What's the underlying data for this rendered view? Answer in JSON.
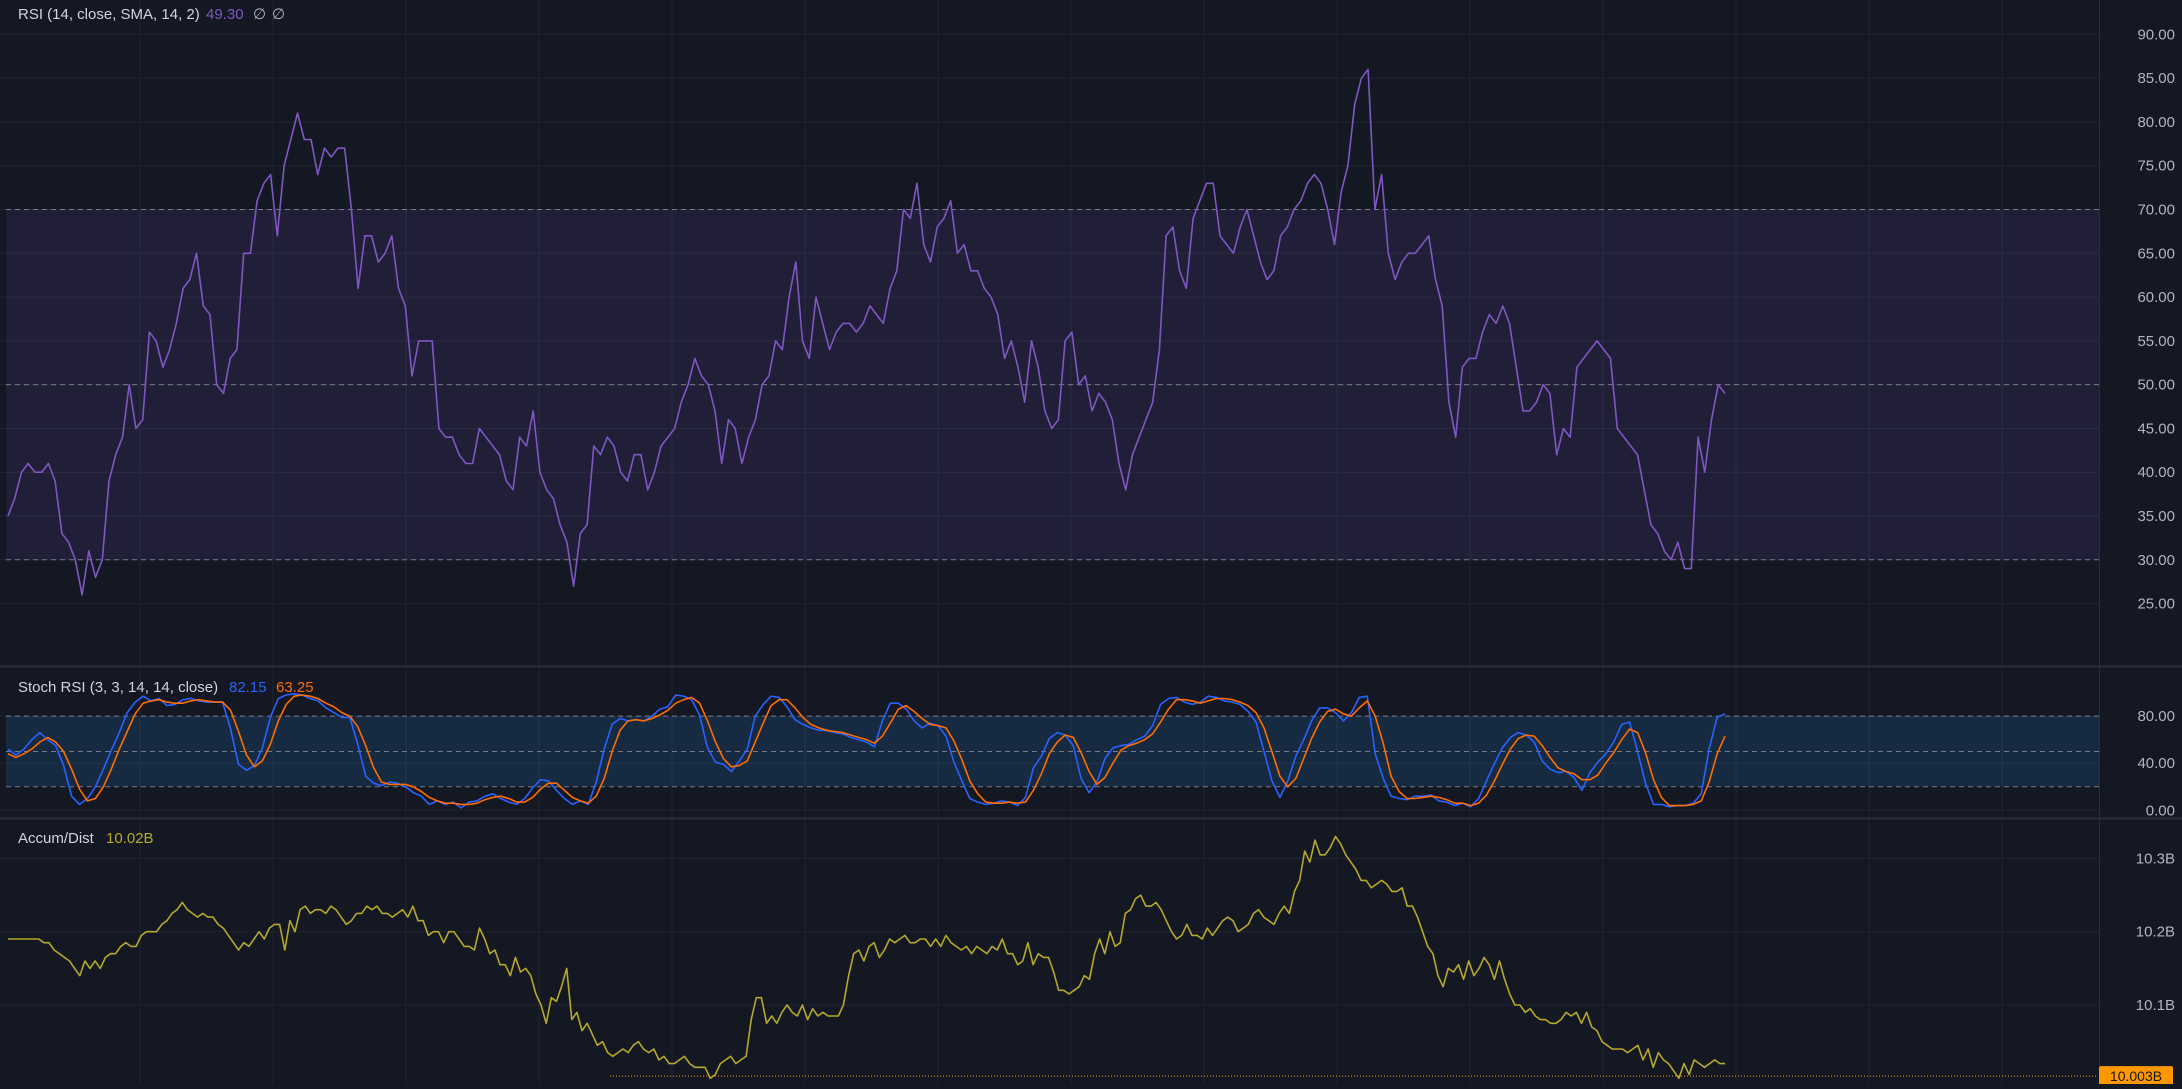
{
  "theme": {
    "background": "#141823",
    "grid": "#212532",
    "separator": "#2a2e39",
    "axis_text": "#b2b5be",
    "label_text": "#d1d4dc",
    "rsi_line": "#7e57c2",
    "rsi_band": "#7e57c2",
    "stoch_k": "#2962ff",
    "stoch_d": "#ff6d00",
    "stoch_band": "#2196f3",
    "ad_line": "#b5a82a",
    "ad_badge": "#ff9800"
  },
  "chart_data": [
    {
      "type": "line",
      "panel": "rsi",
      "label": {
        "name": "RSI (14, close, SMA, 14, 2)",
        "value": "49.30",
        "extra1": "∅",
        "extra2": "∅"
      },
      "yticks": [
        "90.00",
        "85.00",
        "80.00",
        "75.00",
        "70.00",
        "65.00",
        "60.00",
        "55.00",
        "50.00",
        "45.00",
        "40.00",
        "35.00",
        "30.00",
        "25.00"
      ],
      "ylim": [
        20.5,
        91.3
      ],
      "band": [
        30,
        70
      ],
      "levels": [
        70,
        50,
        30
      ],
      "grid": true,
      "series": [
        {
          "values": [
            35,
            37,
            40,
            41,
            40,
            40,
            41,
            39,
            33,
            32,
            30,
            26,
            31,
            28,
            30,
            39,
            42,
            44,
            50,
            45,
            46,
            56,
            55,
            52,
            54,
            57,
            61,
            62,
            65,
            59,
            58,
            50,
            49,
            53,
            54,
            65,
            65,
            71,
            73,
            74,
            67,
            75,
            78,
            81,
            78,
            78,
            74,
            77,
            76,
            77,
            77,
            70,
            61,
            67,
            67,
            64,
            65,
            67,
            61,
            59,
            51,
            55,
            55,
            55,
            45,
            44,
            44,
            42,
            41,
            41,
            45,
            44,
            43,
            42,
            39,
            38,
            44,
            43,
            47,
            40,
            38,
            37,
            34,
            32,
            27,
            33,
            34,
            43,
            42,
            44,
            43,
            40,
            39,
            42,
            42,
            38,
            40,
            43,
            44,
            45,
            48,
            50,
            53,
            51,
            50,
            47,
            41,
            46,
            45,
            41,
            44,
            46,
            50,
            51,
            55,
            54,
            60,
            64,
            55,
            53,
            60,
            57,
            54,
            56,
            57,
            57,
            56,
            57,
            59,
            58,
            57,
            61,
            63,
            70,
            69,
            73,
            66,
            64,
            68,
            69,
            71,
            65,
            66,
            63,
            63,
            61,
            60,
            58,
            53,
            55,
            52,
            48,
            55,
            52,
            47,
            45,
            46,
            55,
            56,
            50,
            51,
            47,
            49,
            48,
            46,
            41,
            38,
            42,
            44,
            46,
            48,
            54,
            67,
            68,
            63,
            61,
            69,
            71,
            73,
            73,
            67,
            66,
            65,
            68,
            70,
            67,
            64,
            62,
            63,
            67,
            68,
            70,
            71,
            73,
            74,
            73,
            70,
            66,
            72,
            75,
            82,
            85,
            86,
            70,
            74,
            65,
            62,
            64,
            65,
            65,
            66,
            67,
            62,
            59,
            48,
            44,
            52,
            53,
            53,
            56,
            58,
            57,
            59,
            57,
            52,
            47,
            47,
            48,
            50,
            49,
            42,
            45,
            44,
            52,
            53,
            54,
            55,
            54,
            53,
            45,
            44,
            43,
            42,
            38,
            34,
            33,
            31,
            30,
            32,
            29,
            29,
            44,
            40,
            46,
            50,
            49
          ]
        }
      ]
    },
    {
      "type": "line",
      "panel": "stoch",
      "label": {
        "name": "Stoch RSI (3, 3, 14, 14, close)",
        "k_value": "82.15",
        "d_value": "63.25"
      },
      "yticks": [
        "80.00",
        "40.00",
        "0.00"
      ],
      "ylim": [
        -4,
        115
      ],
      "band": [
        20,
        80
      ],
      "levels": [
        80,
        50,
        20
      ],
      "grid": true,
      "series": [
        {
          "name": "K",
          "values": [
            52,
            47,
            52,
            60,
            66,
            60,
            55,
            38,
            12,
            5,
            10,
            20,
            35,
            51,
            66,
            83,
            92,
            97,
            93,
            95,
            89,
            90,
            94,
            95,
            93,
            92,
            92,
            92,
            69,
            39,
            34,
            38,
            53,
            79,
            95,
            98,
            99,
            98,
            95,
            93,
            87,
            83,
            79,
            79,
            56,
            29,
            23,
            21,
            24,
            23,
            20,
            15,
            12,
            5,
            8,
            5,
            7,
            2,
            7,
            8,
            12,
            14,
            10,
            7,
            5,
            10,
            19,
            26,
            25,
            17,
            10,
            5,
            8,
            5,
            24,
            52,
            73,
            78,
            76,
            77,
            76,
            80,
            86,
            88,
            98,
            97,
            94,
            81,
            53,
            41,
            39,
            33,
            42,
            52,
            80,
            90,
            97,
            96,
            88,
            77,
            73,
            70,
            68,
            68,
            66,
            65,
            62,
            60,
            58,
            54,
            76,
            91,
            91,
            86,
            76,
            70,
            74,
            72,
            63,
            41,
            25,
            10,
            7,
            5,
            6,
            8,
            7,
            4,
            11,
            36,
            46,
            61,
            66,
            64,
            55,
            27,
            15,
            24,
            44,
            53,
            55,
            56,
            60,
            63,
            72,
            90,
            95,
            96,
            92,
            90,
            92,
            97,
            96,
            93,
            92,
            90,
            84,
            75,
            50,
            25,
            11,
            25,
            46,
            60,
            76,
            87,
            87,
            83,
            76,
            83,
            96,
            97,
            48,
            27,
            12,
            10,
            9,
            12,
            12,
            13,
            8,
            7,
            4,
            6,
            3,
            10,
            25,
            40,
            53,
            62,
            66,
            64,
            58,
            42,
            35,
            32,
            33,
            28,
            17,
            32,
            41,
            48,
            58,
            73,
            75,
            50,
            23,
            5,
            5,
            3,
            4,
            4,
            6,
            14,
            52,
            79,
            82
          ]
        },
        {
          "name": "D",
          "values": [
            48,
            45,
            48,
            52,
            58,
            62,
            58,
            50,
            35,
            18,
            8,
            10,
            20,
            35,
            52,
            67,
            82,
            91,
            93,
            94,
            92,
            91,
            91,
            93,
            94,
            93,
            92,
            92,
            85,
            67,
            47,
            37,
            42,
            56,
            76,
            90,
            97,
            98,
            97,
            95,
            91,
            88,
            83,
            80,
            71,
            55,
            36,
            24,
            22,
            22,
            22,
            20,
            16,
            11,
            8,
            6,
            6,
            5,
            5,
            6,
            9,
            11,
            12,
            10,
            7,
            7,
            11,
            18,
            23,
            23,
            17,
            11,
            8,
            6,
            12,
            27,
            50,
            68,
            76,
            77,
            76,
            78,
            81,
            85,
            91,
            94,
            96,
            91,
            76,
            58,
            44,
            37,
            38,
            42,
            58,
            74,
            89,
            94,
            94,
            87,
            79,
            73,
            70,
            68,
            67,
            66,
            64,
            62,
            60,
            57,
            63,
            74,
            86,
            89,
            84,
            78,
            73,
            72,
            70,
            59,
            43,
            25,
            14,
            7,
            6,
            6,
            7,
            6,
            7,
            17,
            31,
            48,
            58,
            64,
            62,
            49,
            33,
            22,
            28,
            40,
            51,
            55,
            57,
            60,
            65,
            75,
            86,
            94,
            94,
            93,
            91,
            93,
            95,
            95,
            94,
            92,
            89,
            83,
            70,
            50,
            29,
            20,
            27,
            44,
            61,
            75,
            84,
            86,
            82,
            80,
            87,
            93,
            80,
            57,
            29,
            16,
            10,
            10,
            11,
            12,
            11,
            9,
            6,
            6,
            4,
            6,
            13,
            25,
            39,
            52,
            61,
            64,
            63,
            55,
            45,
            36,
            33,
            31,
            26,
            26,
            30,
            40,
            49,
            60,
            69,
            66,
            49,
            26,
            11,
            4,
            4,
            4,
            5,
            8,
            24,
            48,
            63
          ]
        }
      ]
    },
    {
      "type": "line",
      "panel": "accum_dist",
      "label": {
        "name": "Accum/Dist",
        "value": "10.02B"
      },
      "yticks": [
        "10.3B",
        "10.2B",
        "10.1B"
      ],
      "ylim": [
        9.999,
        10.347
      ],
      "price_badge": "10.003B",
      "price_badge_value": 10.003,
      "grid": true,
      "series": [
        {
          "values": [
            10.19,
            10.19,
            10.19,
            10.19,
            10.19,
            10.19,
            10.19,
            10.185,
            10.185,
            10.175,
            10.17,
            10.165,
            10.16,
            10.15,
            10.14,
            10.16,
            10.15,
            10.16,
            10.15,
            10.165,
            10.17,
            10.17,
            10.18,
            10.185,
            10.18,
            10.18,
            10.195,
            10.2,
            10.2,
            10.2,
            10.21,
            10.215,
            10.225,
            10.23,
            10.24,
            10.23,
            10.225,
            10.22,
            10.225,
            10.22,
            10.22,
            10.21,
            10.205,
            10.195,
            10.185,
            10.175,
            10.185,
            10.18,
            10.19,
            10.2,
            10.19,
            10.205,
            10.21,
            10.21,
            10.175,
            10.215,
            10.2,
            10.23,
            10.235,
            10.225,
            10.23,
            10.23,
            10.225,
            10.235,
            10.23,
            10.22,
            10.21,
            10.215,
            10.225,
            10.225,
            10.235,
            10.23,
            10.235,
            10.225,
            10.225,
            10.22,
            10.225,
            10.23,
            10.22,
            10.235,
            10.215,
            10.215,
            10.195,
            10.2,
            10.2,
            10.185,
            10.2,
            10.2,
            10.19,
            10.18,
            10.18,
            10.175,
            10.205,
            10.19,
            10.17,
            10.175,
            10.155,
            10.155,
            10.14,
            10.165,
            10.145,
            10.15,
            10.14,
            10.115,
            10.1,
            10.075,
            10.11,
            10.105,
            10.125,
            10.15,
            10.08,
            10.09,
            10.065,
            10.075,
            10.06,
            10.045,
            10.05,
            10.035,
            10.03,
            10.035,
            10.04,
            10.035,
            10.045,
            10.05,
            10.04,
            10.035,
            10.04,
            10.025,
            10.03,
            10.02,
            10.02,
            10.025,
            10.03,
            10.02,
            10.015,
            10.015,
            10.015,
            10.0,
            10.005,
            10.02,
            10.025,
            10.03,
            10.02,
            10.025,
            10.03,
            10.08,
            10.11,
            10.11,
            10.075,
            10.085,
            10.075,
            10.09,
            10.1,
            10.09,
            10.085,
            10.1,
            10.08,
            10.095,
            10.085,
            10.09,
            10.085,
            10.085,
            10.085,
            10.1,
            10.14,
            10.17,
            10.175,
            10.16,
            10.18,
            10.185,
            10.165,
            10.175,
            10.19,
            10.185,
            10.19,
            10.195,
            10.185,
            10.185,
            10.19,
            10.19,
            10.18,
            10.19,
            10.18,
            10.195,
            10.185,
            10.18,
            10.175,
            10.18,
            10.17,
            10.18,
            10.175,
            10.17,
            10.18,
            10.175,
            10.19,
            10.17,
            10.17,
            10.155,
            10.16,
            10.185,
            10.155,
            10.17,
            10.165,
            10.165,
            10.145,
            10.12,
            10.12,
            10.115,
            10.12,
            10.125,
            10.14,
            10.135,
            10.17,
            10.19,
            10.17,
            10.2,
            10.18,
            10.185,
            10.225,
            10.23,
            10.245,
            10.25,
            10.235,
            10.235,
            10.24,
            10.23,
            10.215,
            10.2,
            10.19,
            10.195,
            10.21,
            10.195,
            10.195,
            10.19,
            10.205,
            10.195,
            10.205,
            10.215,
            10.22,
            10.215,
            10.2,
            10.205,
            10.21,
            10.225,
            10.23,
            10.22,
            10.215,
            10.21,
            10.225,
            10.235,
            10.225,
            10.255,
            10.27,
            10.31,
            10.295,
            10.325,
            10.305,
            10.305,
            10.315,
            10.33,
            10.32,
            10.305,
            10.295,
            10.285,
            10.27,
            10.27,
            10.26,
            10.265,
            10.27,
            10.265,
            10.255,
            10.255,
            10.26,
            10.235,
            10.235,
            10.22,
            10.2,
            10.18,
            10.17,
            10.14,
            10.125,
            10.15,
            10.145,
            10.155,
            10.135,
            10.16,
            10.14,
            10.15,
            10.165,
            10.155,
            10.135,
            10.16,
            10.135,
            10.115,
            10.1,
            10.1,
            10.09,
            10.095,
            10.085,
            10.08,
            10.08,
            10.075,
            10.075,
            10.08,
            10.09,
            10.085,
            10.09,
            10.075,
            10.09,
            10.07,
            10.065,
            10.05,
            10.045,
            10.04,
            10.04,
            10.04,
            10.035,
            10.04,
            10.045,
            10.025,
            10.04,
            10.015,
            10.035,
            10.025,
            10.02,
            10.01,
            10.0,
            10.02,
            10.005,
            10.025,
            10.02,
            10.015,
            10.02,
            10.025,
            10.02,
            10.02
          ]
        }
      ]
    }
  ]
}
